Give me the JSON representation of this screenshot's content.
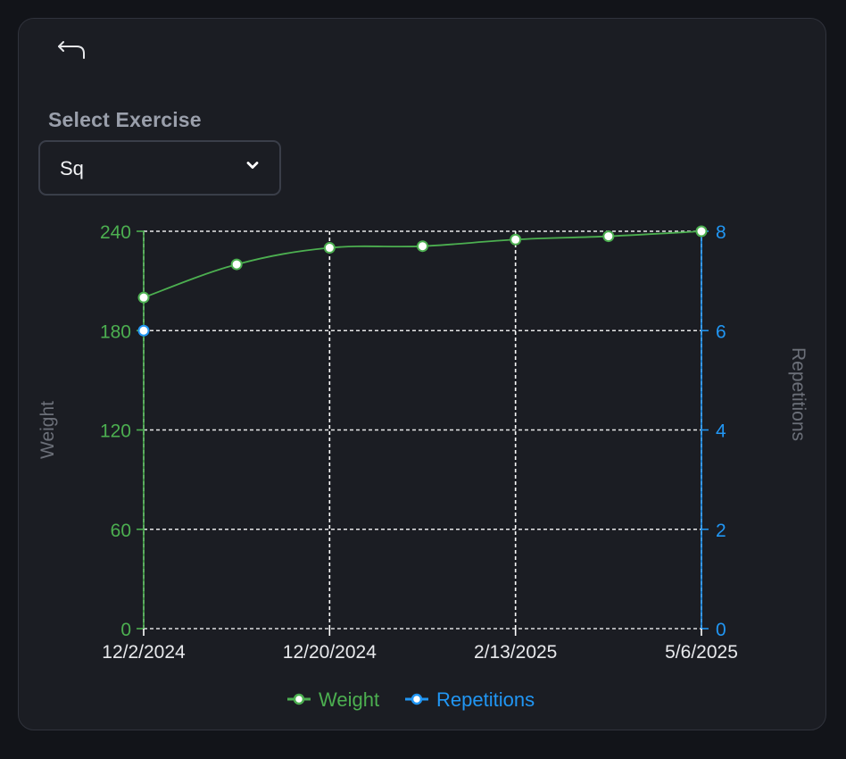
{
  "colors": {
    "page_bg": "#121419",
    "card_bg": "#1b1d23",
    "weight": "#4caf50",
    "repetitions": "#2196f3",
    "grid": "#ffffff",
    "axis_title": "#6b6f78",
    "x_tick": "#ffffff"
  },
  "header": {
    "back_icon": "undo-arrow-icon"
  },
  "form": {
    "label": "Select Exercise",
    "selected_value": "Sq",
    "caret_icon": "chevron-down-icon"
  },
  "chart_data": {
    "type": "line",
    "x_labels_shown": [
      "12/2/2024",
      "12/20/2024",
      "2/13/2025",
      "5/6/2025"
    ],
    "series": [
      {
        "name": "Weight",
        "axis": "left",
        "color": "#4caf50",
        "points": [
          {
            "x": "12/2/2024",
            "y": 200
          },
          {
            "x": "",
            "y": 220
          },
          {
            "x": "12/20/2024",
            "y": 230
          },
          {
            "x": "",
            "y": 231
          },
          {
            "x": "2/13/2025",
            "y": 235
          },
          {
            "x": "",
            "y": 237
          },
          {
            "x": "5/6/2025",
            "y": 240
          }
        ]
      },
      {
        "name": "Repetitions",
        "axis": "right",
        "color": "#2196f3",
        "points": [
          {
            "x": "12/2/2024",
            "y": 6
          }
        ]
      }
    ],
    "y_left": {
      "label": "Weight",
      "ticks": [
        "0",
        "60",
        "120",
        "180",
        "240"
      ],
      "min": 0,
      "max": 240
    },
    "y_right": {
      "label": "Repetitions",
      "ticks": [
        "0",
        "2",
        "4",
        "6",
        "8"
      ],
      "min": 0,
      "max": 8
    },
    "grid": true,
    "legend": {
      "position": "bottom",
      "items": [
        "Weight",
        "Repetitions"
      ]
    }
  }
}
